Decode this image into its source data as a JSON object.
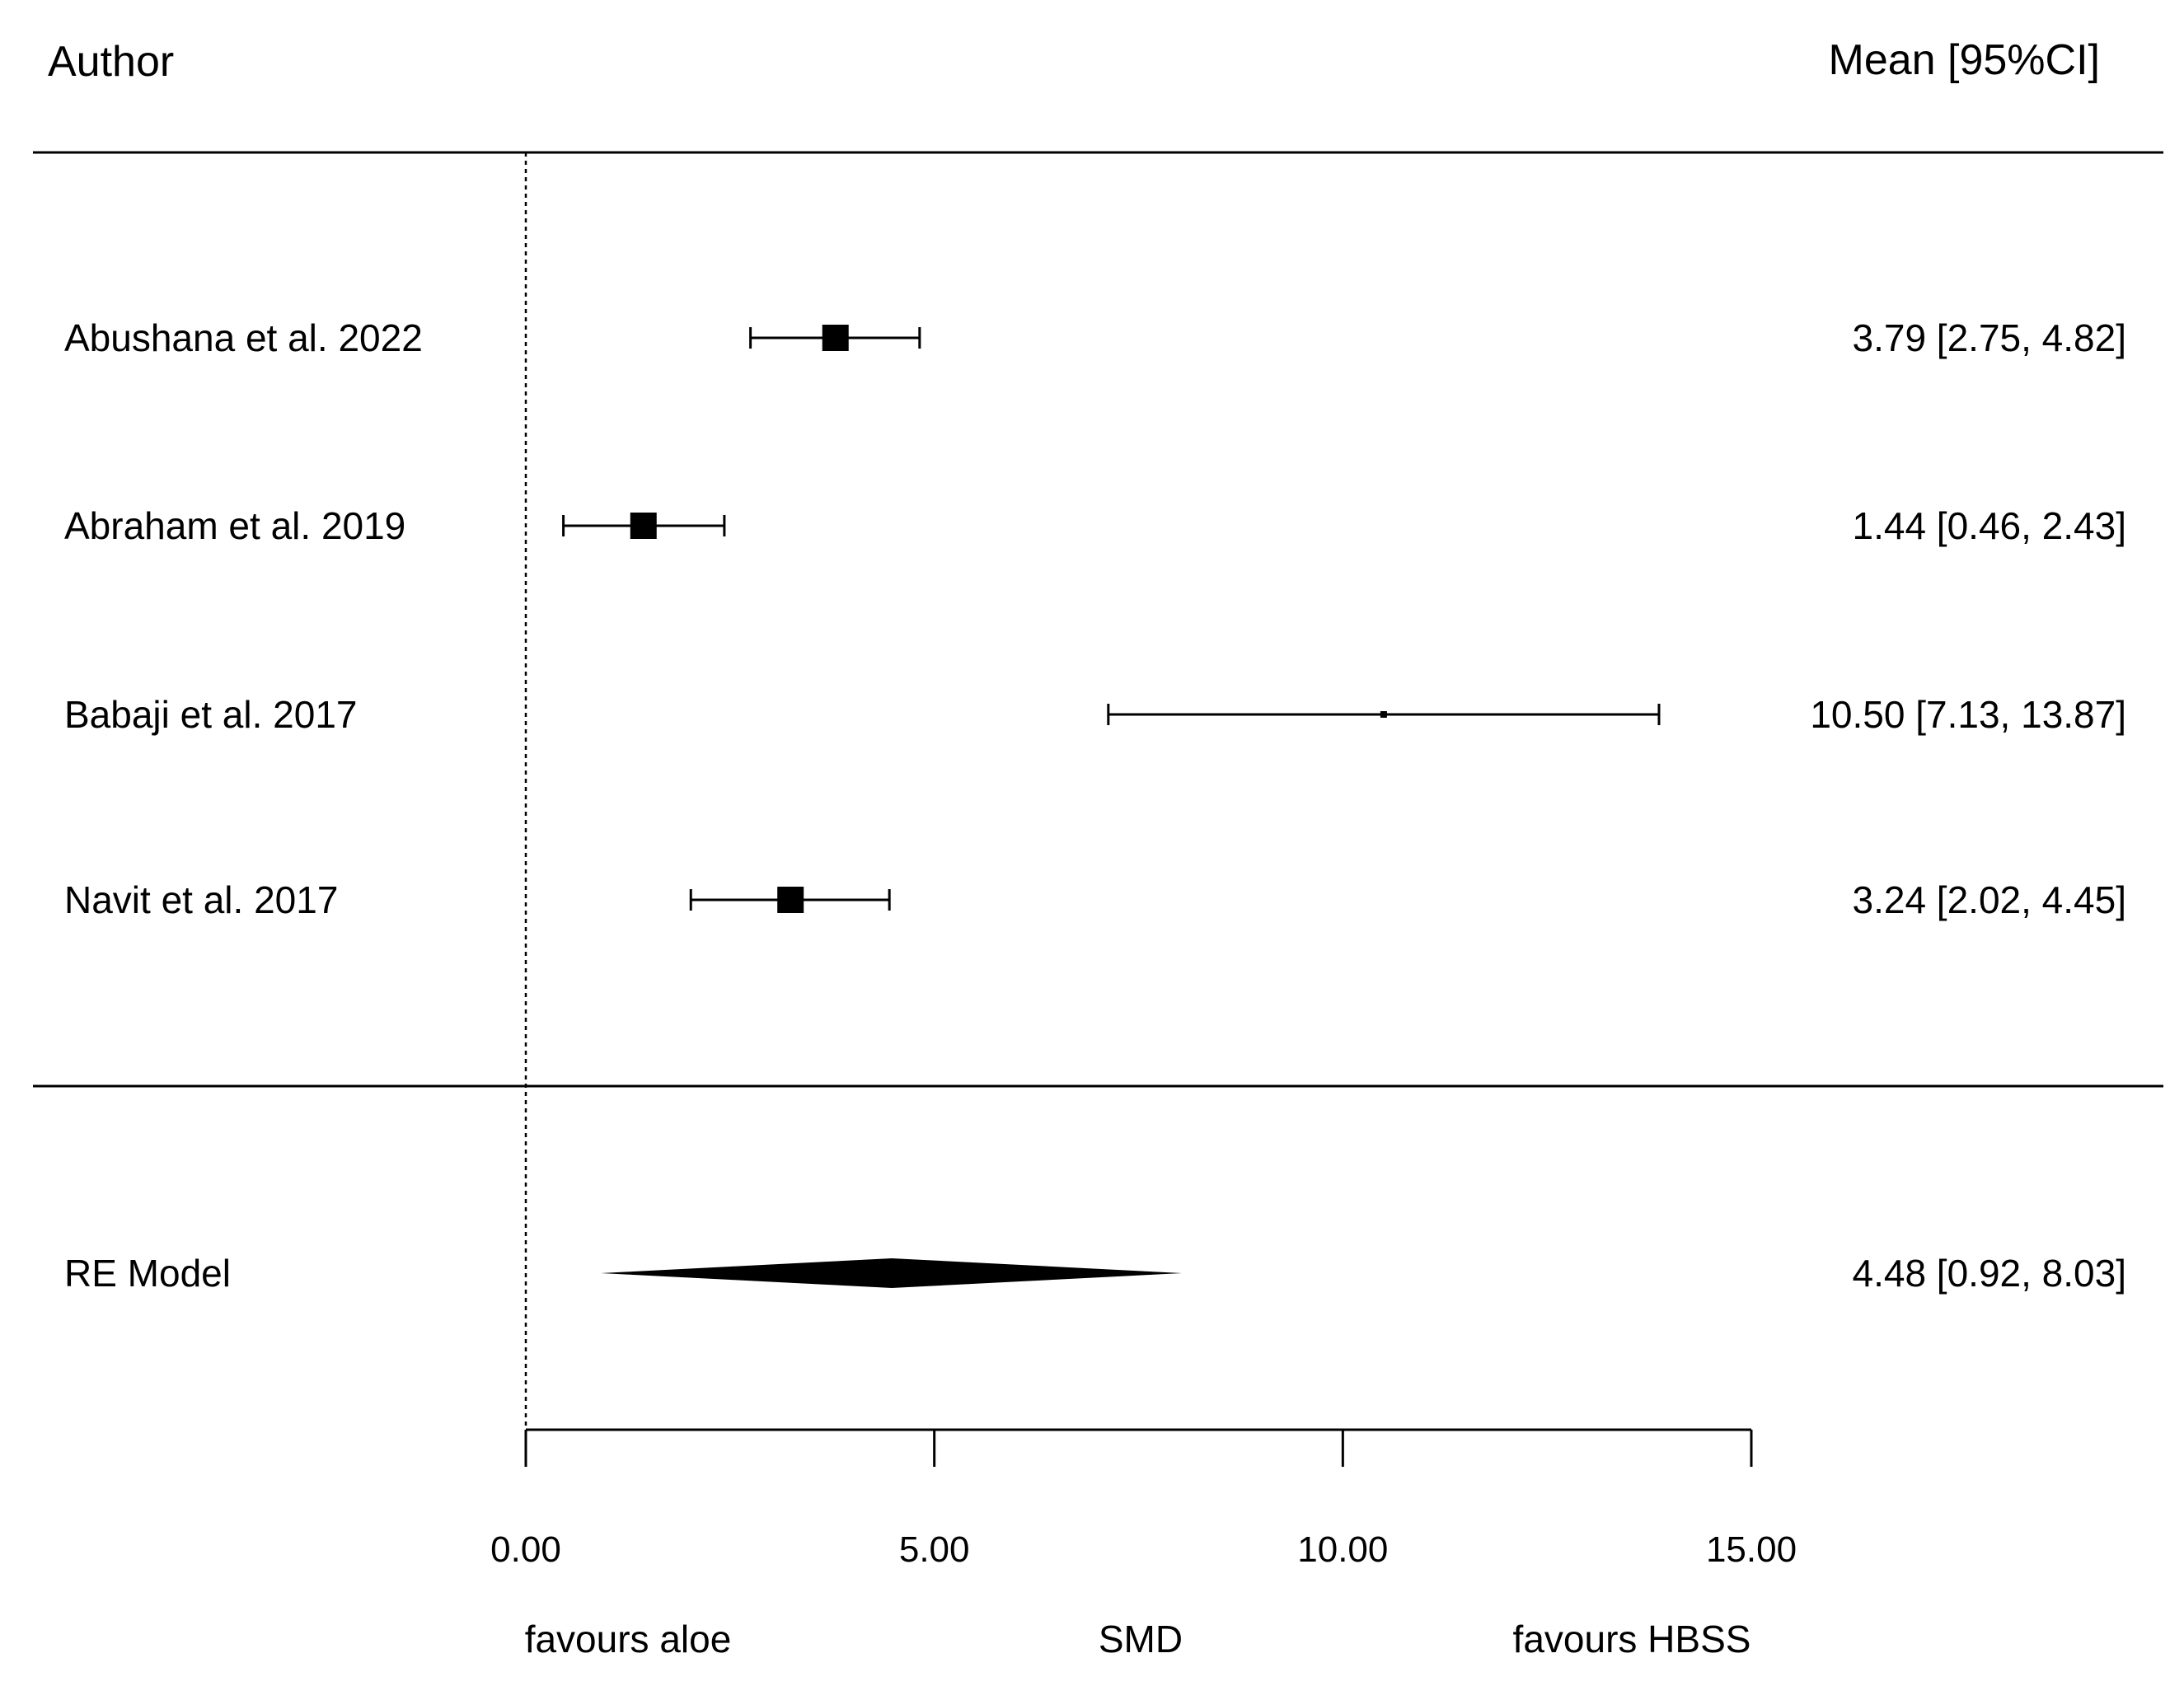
{
  "chart_data": {
    "type": "forest",
    "header": {
      "left": "Author",
      "right": "Mean [95%CI]"
    },
    "studies": [
      {
        "name": "Abushana et al. 2022",
        "mean": 3.79,
        "lower": 2.75,
        "upper": 4.82,
        "ci_text": "3.79 [2.75,  4.82]"
      },
      {
        "name": "Abraham et al. 2019",
        "mean": 1.44,
        "lower": 0.46,
        "upper": 2.43,
        "ci_text": "1.44 [0.46,  2.43]"
      },
      {
        "name": "Babaji et al. 2017",
        "mean": 10.5,
        "lower": 7.13,
        "upper": 13.87,
        "ci_text": "10.50 [7.13, 13.87]"
      },
      {
        "name": "Navit et al. 2017",
        "mean": 3.24,
        "lower": 2.02,
        "upper": 4.45,
        "ci_text": "3.24 [2.02,  4.45]"
      }
    ],
    "summary": {
      "name": "RE Model",
      "mean": 4.48,
      "lower": 0.92,
      "upper": 8.03,
      "ci_text": "4.48 [0.92,  8.03]"
    },
    "xaxis": {
      "ticks": [
        0,
        5,
        10,
        15
      ],
      "tick_labels": [
        "0.00",
        "5.00",
        "10.00",
        "15.00"
      ],
      "xlim": [
        0,
        15
      ],
      "label": "SMD",
      "left_note": "favours aloe",
      "right_note": "favours HBSS"
    },
    "reference_line": 0
  }
}
